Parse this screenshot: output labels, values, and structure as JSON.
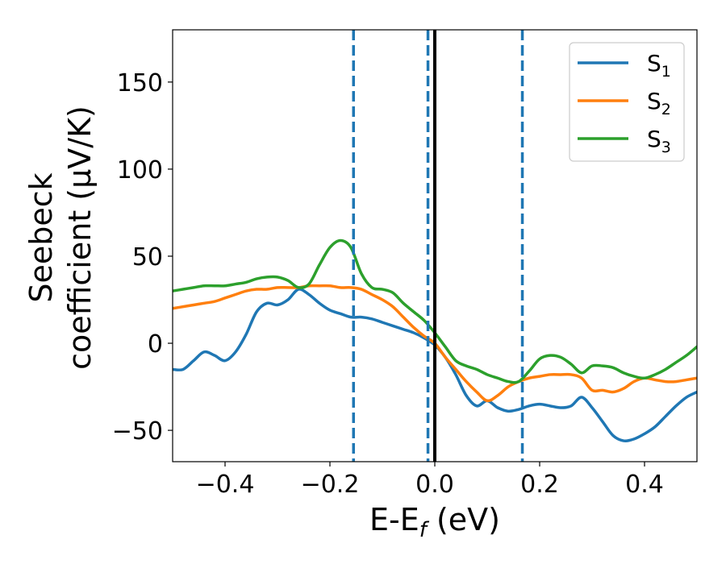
{
  "chart_data": {
    "type": "line",
    "xlabel": {
      "main": "E-E",
      "sub": "f",
      "unit": " (eV)"
    },
    "ylabel": {
      "line1": "Seebeck",
      "line2": "coefficient  (μV/K)"
    },
    "xlim": [
      -0.5,
      0.5
    ],
    "ylim": [
      -68,
      180
    ],
    "xticks": [
      -0.4,
      -0.2,
      0.0,
      0.2,
      0.4
    ],
    "xtick_labels": [
      "−0.4",
      "−0.2",
      "0.0",
      "0.2",
      "0.4"
    ],
    "yticks": [
      -50,
      0,
      50,
      100,
      150
    ],
    "ytick_labels": [
      "−50",
      "0",
      "50",
      "100",
      "150"
    ],
    "grid": false,
    "legend_position": "top-right",
    "vertical_lines": [
      {
        "x": -0.155,
        "style": "dashed",
        "color": "#1f77b4"
      },
      {
        "x": -0.013,
        "style": "dashed",
        "color": "#1f77b4"
      },
      {
        "x": 0.0,
        "style": "solid",
        "color": "#000000"
      },
      {
        "x": 0.167,
        "style": "dashed",
        "color": "#1f77b4"
      }
    ],
    "series": [
      {
        "name": "S",
        "subscript": "1",
        "color": "#1f77b4",
        "x": [
          -0.5,
          -0.48,
          -0.46,
          -0.44,
          -0.42,
          -0.4,
          -0.38,
          -0.36,
          -0.34,
          -0.32,
          -0.3,
          -0.28,
          -0.26,
          -0.24,
          -0.22,
          -0.2,
          -0.18,
          -0.16,
          -0.14,
          -0.12,
          -0.1,
          -0.08,
          -0.06,
          -0.04,
          -0.02,
          0.0,
          0.02,
          0.04,
          0.06,
          0.08,
          0.1,
          0.12,
          0.14,
          0.16,
          0.18,
          0.2,
          0.22,
          0.24,
          0.26,
          0.28,
          0.3,
          0.32,
          0.34,
          0.36,
          0.38,
          0.4,
          0.42,
          0.44,
          0.46,
          0.48,
          0.5
        ],
        "y": [
          -15,
          -15,
          -10,
          -5,
          -7,
          -10,
          -5,
          5,
          18,
          23,
          22,
          25,
          31,
          28,
          23,
          19,
          17,
          15,
          15,
          14,
          12,
          10,
          8,
          6,
          3,
          -1,
          -8,
          -18,
          -30,
          -36,
          -33,
          -37,
          -39,
          -38,
          -36,
          -35,
          -36,
          -37,
          -36,
          -31,
          -37,
          -45,
          -53,
          -56,
          -55,
          -52,
          -48,
          -42,
          -36,
          -31,
          -28
        ]
      },
      {
        "name": "S",
        "subscript": "2",
        "color": "#ff7f0e",
        "x": [
          -0.5,
          -0.48,
          -0.46,
          -0.44,
          -0.42,
          -0.4,
          -0.38,
          -0.36,
          -0.34,
          -0.32,
          -0.3,
          -0.28,
          -0.26,
          -0.24,
          -0.22,
          -0.2,
          -0.18,
          -0.16,
          -0.14,
          -0.12,
          -0.1,
          -0.08,
          -0.06,
          -0.04,
          -0.02,
          0.0,
          0.02,
          0.04,
          0.06,
          0.08,
          0.1,
          0.12,
          0.14,
          0.16,
          0.18,
          0.2,
          0.22,
          0.24,
          0.26,
          0.28,
          0.3,
          0.32,
          0.34,
          0.36,
          0.38,
          0.4,
          0.42,
          0.44,
          0.46,
          0.48,
          0.5
        ],
        "y": [
          20,
          21,
          22,
          23,
          24,
          26,
          28,
          30,
          31,
          31,
          32,
          32,
          32,
          33,
          33,
          33,
          32,
          32,
          31,
          28,
          25,
          21,
          15,
          9,
          4,
          0,
          -8,
          -15,
          -22,
          -28,
          -33,
          -30,
          -25,
          -22,
          -20,
          -19,
          -18,
          -18,
          -18,
          -20,
          -27,
          -27,
          -28,
          -26,
          -22,
          -20,
          -21,
          -22,
          -22,
          -21,
          -20
        ]
      },
      {
        "name": "S",
        "subscript": "3",
        "color": "#2ca02c",
        "x": [
          -0.5,
          -0.48,
          -0.46,
          -0.44,
          -0.42,
          -0.4,
          -0.38,
          -0.36,
          -0.34,
          -0.32,
          -0.3,
          -0.28,
          -0.26,
          -0.24,
          -0.22,
          -0.2,
          -0.18,
          -0.16,
          -0.14,
          -0.12,
          -0.1,
          -0.08,
          -0.06,
          -0.04,
          -0.02,
          0.0,
          0.02,
          0.04,
          0.06,
          0.08,
          0.1,
          0.12,
          0.14,
          0.16,
          0.18,
          0.2,
          0.22,
          0.24,
          0.26,
          0.28,
          0.3,
          0.32,
          0.34,
          0.36,
          0.38,
          0.4,
          0.42,
          0.44,
          0.46,
          0.48,
          0.5
        ],
        "y": [
          30,
          31,
          32,
          33,
          33,
          33,
          34,
          35,
          37,
          38,
          38,
          36,
          32,
          34,
          45,
          55,
          59,
          55,
          40,
          32,
          31,
          29,
          23,
          18,
          13,
          6,
          -2,
          -10,
          -13,
          -15,
          -18,
          -20,
          -22,
          -22,
          -16,
          -9,
          -7,
          -8,
          -12,
          -17,
          -13,
          -13,
          -14,
          -17,
          -19,
          -20,
          -18,
          -15,
          -11,
          -7,
          -2
        ]
      }
    ]
  }
}
